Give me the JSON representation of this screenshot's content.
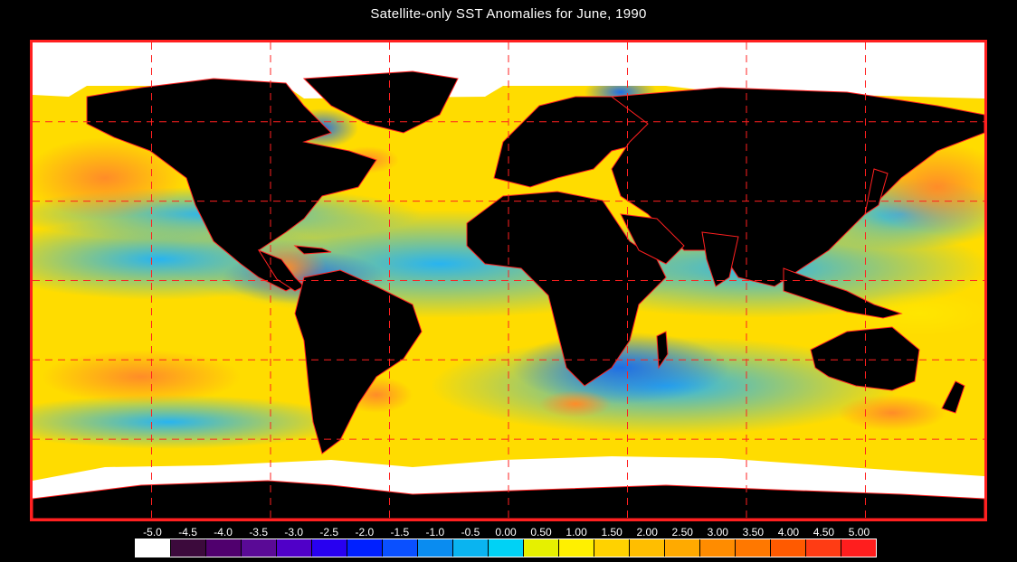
{
  "title": "Satellite-only SST Anomalies for June, 1990",
  "colors": {
    "frame": "#ff2020",
    "land": "#000000",
    "ice": "#ffffff",
    "grid": "#ff2020",
    "coastline": "#ff2020"
  },
  "map": {
    "projection": "equirectangular",
    "lon_range": [
      -180,
      180
    ],
    "lat_range": [
      -90,
      90
    ],
    "grid_lon_step": 45,
    "grid_lat_step": 30
  },
  "colorbar": {
    "labels": [
      "-5.0",
      "-4.5",
      "-4.0",
      "-3.5",
      "-3.0",
      "-2.5",
      "-2.0",
      "-1.5",
      "-1.0",
      "-0.5",
      "0.00",
      "0.50",
      "1.00",
      "1.50",
      "2.00",
      "2.50",
      "3.00",
      "3.50",
      "4.00",
      "4.50",
      "5.00"
    ],
    "swatches": [
      "#ffffff",
      "#3c0a3c",
      "#50006e",
      "#5a0a96",
      "#5000c8",
      "#2800f0",
      "#0020ff",
      "#0a50ff",
      "#0a8cf0",
      "#0ab4f0",
      "#00d2f5",
      "#e6f000",
      "#fff000",
      "#ffd200",
      "#ffbe00",
      "#ffaa00",
      "#ff8c00",
      "#ff7800",
      "#ff5a00",
      "#ff3c14",
      "#ff1e1e"
    ]
  }
}
